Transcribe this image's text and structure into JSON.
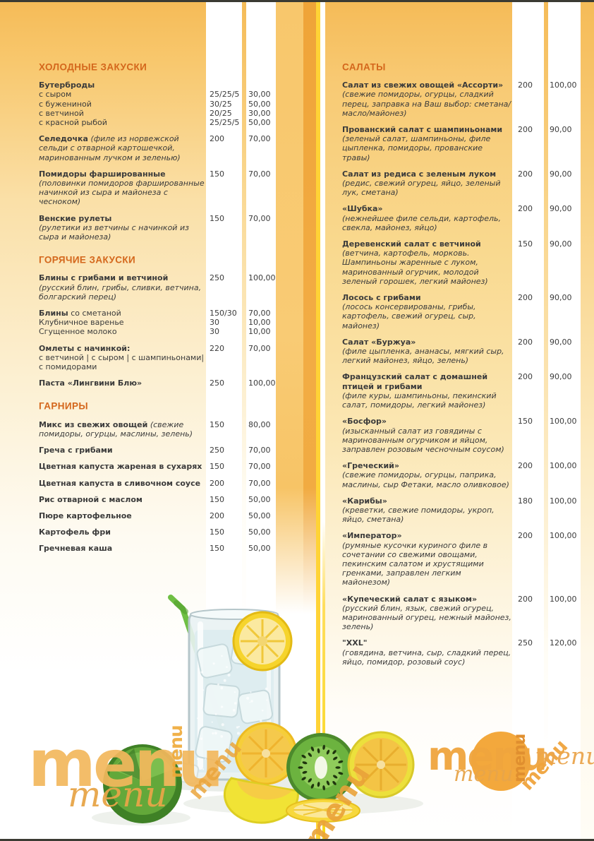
{
  "decor": {
    "menu_word": "menu"
  },
  "colors": {
    "section_header": "#d4671c",
    "stripe_orange": "#f6be5e",
    "stripe_dark_orange": "#f2ac44",
    "stripe_yellow": "#ffd336",
    "circle_orange": "#f3a83c",
    "text": "#3b3b3b"
  },
  "columns": {
    "left": {
      "sections": [
        {
          "title": "ХОЛОДНЫЕ ЗАКУСКИ",
          "items": [
            {
              "name": "Бутерброды",
              "sub": [
                {
                  "label": "с сыром",
                  "weight": "25/25/5",
                  "price": "30,00"
                },
                {
                  "label": "с бужениной",
                  "weight": "30/25",
                  "price": "50,00"
                },
                {
                  "label": "с ветчиной",
                  "weight": "20/25",
                  "price": "30,00"
                },
                {
                  "label": "с красной рыбой",
                  "weight": "25/25/5",
                  "price": "50,00"
                }
              ]
            },
            {
              "name": "Селедочка",
              "desc": "(филе из норвежской сельди с отварной картошечкой, маринованным лучком и зеленью)",
              "weight": "200",
              "price": "70,00"
            },
            {
              "name": "Помидоры фаршированные",
              "brk": true,
              "desc": "(половинки помидоров фаршированные начинкой из сыра и майонеза с чесноком)",
              "weight": "150",
              "price": "70,00"
            },
            {
              "name": "Венские рулеты",
              "brk": true,
              "desc": "(рулетики из ветчины с начинкой из сыра и майонеза)",
              "weight": "150",
              "price": "70,00"
            }
          ]
        },
        {
          "title": "ГОРЯЧИЕ ЗАКУСКИ",
          "items": [
            {
              "name": "Блины с грибами и ветчиной",
              "brk": true,
              "desc": "(русский блин, грибы, сливки, ветчина, болгарский перец)",
              "weight": "250",
              "price": "100,00"
            },
            {
              "name": "Блины",
              "rest": " со сметаной",
              "weight": "150/30",
              "price": "70,00",
              "sub": [
                {
                  "label": "Клубничное варенье",
                  "weight": "30",
                  "price": "10,00"
                },
                {
                  "label": "Сгущенное молоко",
                  "weight": "30",
                  "price": "10,00"
                }
              ]
            },
            {
              "name": "Омлеты с начинкой:",
              "brk": true,
              "desc": "с ветчиной | с сыром | с шампиньонами| с помидорами",
              "desc_plain": true,
              "weight": "220",
              "price": "70,00"
            },
            {
              "name": "Паста «Лингвини Блю»",
              "weight": "250",
              "price": "100,00"
            }
          ]
        },
        {
          "title": "ГАРНИРЫ",
          "items": [
            {
              "name": "Микс из свежих овощей",
              "desc": "(свежие помидоры, огурцы, маслины, зелень)",
              "weight": "150",
              "price": "80,00"
            },
            {
              "name": "Греча с грибами",
              "weight": "250",
              "price": "70,00"
            },
            {
              "name": "Цветная капуста жареная в сухарях",
              "weight": "150",
              "price": "70,00"
            },
            {
              "name": "Цветная капуста в сливочном соусе",
              "weight": "200",
              "price": "70,00"
            },
            {
              "name": "Рис отварной с маслом",
              "weight": "150",
              "price": "50,00"
            },
            {
              "name": "Пюре картофельное",
              "weight": "200",
              "price": "50,00"
            },
            {
              "name": "Картофель фри",
              "weight": "150",
              "price": "50,00"
            },
            {
              "name": "Гречневая каша",
              "weight": "150",
              "price": "50,00"
            }
          ]
        }
      ]
    },
    "right": {
      "sections": [
        {
          "title": "САЛАТЫ",
          "items": [
            {
              "name": "Салат из свежих овощей «Ассорти»",
              "brk": true,
              "desc": "(свежие помидоры, огурцы, сладкий перец, заправка на Ваш выбор: сметана/масло/майонез)",
              "weight": "200",
              "price": "100,00"
            },
            {
              "name": "Прованский салат с шампиньонами",
              "brk": true,
              "desc": "(зеленый салат, шампиньоны, филе цыпленка, помидоры, прованские травы)",
              "weight": "200",
              "price": "90,00"
            },
            {
              "name": "Салат из редиса с зеленым луком",
              "brk": true,
              "desc": "(редис, свежий огурец, яйцо, зеленый лук, сметана)",
              "weight": "200",
              "price": "90,00"
            },
            {
              "name": "«Шубка»",
              "brk": true,
              "desc": "(нежнейшее филе сельди, картофель, свекла, майонез, яйцо)",
              "weight": "200",
              "price": "90,00"
            },
            {
              "name": "Деревенский салат с ветчиной",
              "brk": true,
              "desc": "(ветчина, картофель, морковь. Шампиньоны жаренные с луком, маринованный огурчик, молодой зеленый горошек, легкий майонез)",
              "weight": "150",
              "price": "90,00"
            },
            {
              "name": "Лосось с грибами",
              "brk": true,
              "desc": "(лосось консервированы, грибы, картофель, свежий огурец, сыр, майонез)",
              "weight": "200",
              "price": "90,00"
            },
            {
              "name": "Салат «Буржуа»",
              "brk": true,
              "desc": "(филе цыпленка, ананасы, мягкий сыр, легкий майонез, яйцо, зелень)",
              "weight": "200",
              "price": "90,00"
            },
            {
              "name": "Французский салат с домашней птицей и грибами",
              "brk": true,
              "desc": "(филе куры, шампиньоны, пекинский салат, помидоры, легкий майонез)",
              "weight": "200",
              "price": "90,00"
            },
            {
              "name": "«Босфор»",
              "brk": true,
              "desc": "(изысканный салат из говядины с маринованным огурчиком и яйцом, заправлен розовым чесночным соусом)",
              "weight": "150",
              "price": "100,00"
            },
            {
              "name": "«Греческий»",
              "brk": true,
              "desc": "(свежие помидоры, огурцы, паприка, маслины, сыр Фетаки, масло оливковое)",
              "weight": "200",
              "price": "100,00"
            },
            {
              "name": "«Карибы»",
              "brk": true,
              "desc": "(креветки, свежие помидоры, укроп, яйцо, сметана)",
              "weight": "180",
              "price": "100,00"
            },
            {
              "name": "«Император»",
              "brk": true,
              "desc": "(румяные кусочки куриного филе в сочетании со свежими овощами, пекинским салатом и хрустящими гренками, заправлен легким майонезом)",
              "weight": "200",
              "price": "100,00"
            },
            {
              "name": "«Купеческий салат с языком»",
              "brk": true,
              "desc": "(русский блин, язык, свежий огурец, маринованный огурец, нежный майонез, зелень)",
              "weight": "200",
              "price": "100,00"
            },
            {
              "name": "\"XXL\"",
              "brk": true,
              "desc": "(говядина, ветчина, сыр, сладкий перец, яйцо, помидор, розовый соус)",
              "weight": "250",
              "price": "120,00"
            }
          ]
        }
      ]
    }
  }
}
